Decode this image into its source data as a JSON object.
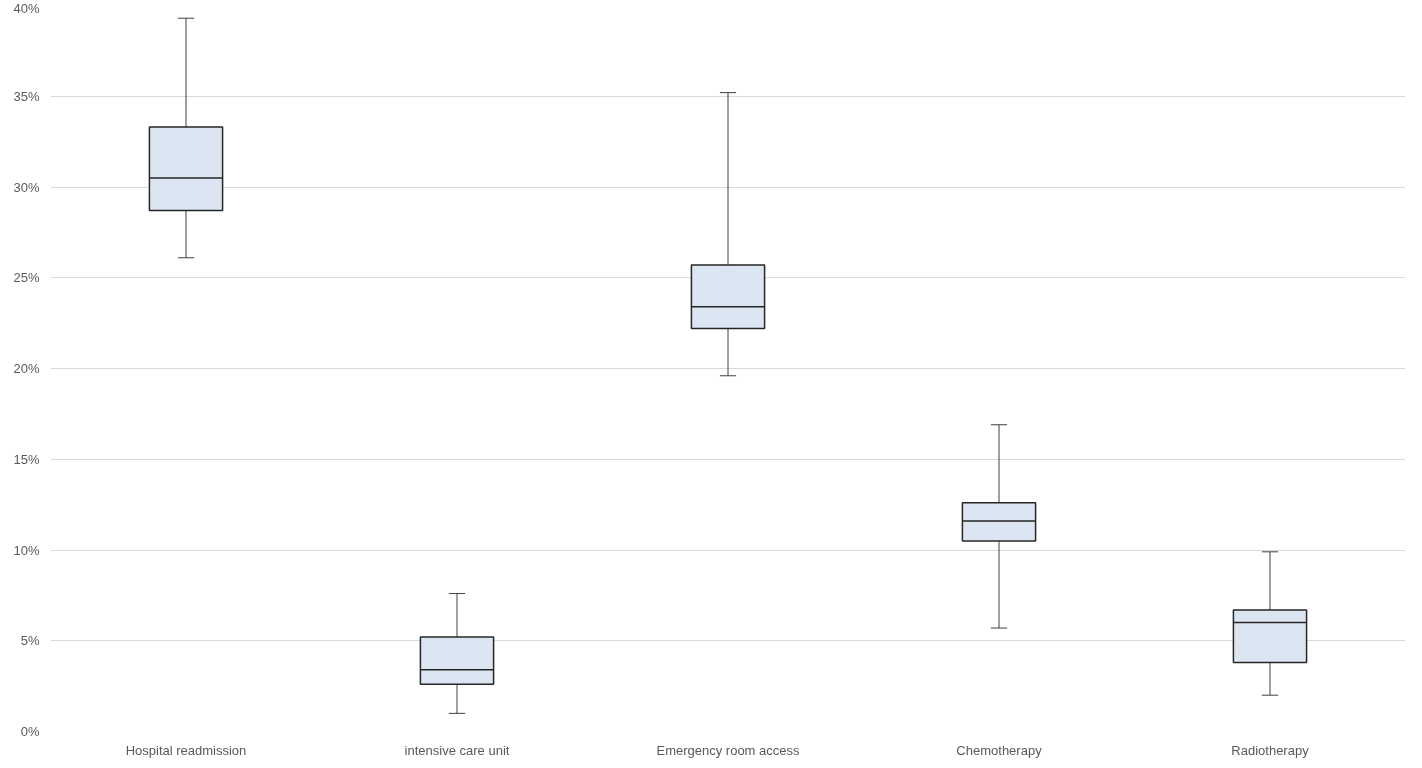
{
  "chart_data": {
    "type": "box",
    "categories": [
      "Hospital readmission",
      "intensive care unit",
      "Emergency room access",
      "Chemotherapy",
      "Radiotherapy"
    ],
    "boxes": [
      {
        "low": 26.1,
        "q1": 28.7,
        "median": 30.5,
        "q3": 33.3,
        "high": 39.3
      },
      {
        "low": 1.0,
        "q1": 2.6,
        "median": 3.4,
        "q3": 5.2,
        "high": 7.6
      },
      {
        "low": 19.6,
        "q1": 22.2,
        "median": 23.4,
        "q3": 25.7,
        "high": 35.2
      },
      {
        "low": 5.7,
        "q1": 10.5,
        "median": 11.6,
        "q3": 12.6,
        "high": 16.9
      },
      {
        "low": 2.0,
        "q1": 3.8,
        "median": 6.0,
        "q3": 6.7,
        "high": 9.9
      }
    ],
    "colors": [
      "#dce6f2",
      "#dce6f2",
      "#dce6f2",
      "#dce6f2",
      "#dce6f2"
    ],
    "ylim": [
      0,
      40
    ],
    "yticks": [
      {
        "value": 0,
        "label": "0%"
      },
      {
        "value": 5,
        "label": "5%"
      },
      {
        "value": 10,
        "label": "10%"
      },
      {
        "value": 15,
        "label": "15%"
      },
      {
        "value": 20,
        "label": "20%"
      },
      {
        "value": 25,
        "label": "25%"
      },
      {
        "value": 30,
        "label": "30%"
      },
      {
        "value": 35,
        "label": "35%"
      },
      {
        "value": 40,
        "label": "40%"
      }
    ],
    "grid": "y"
  }
}
